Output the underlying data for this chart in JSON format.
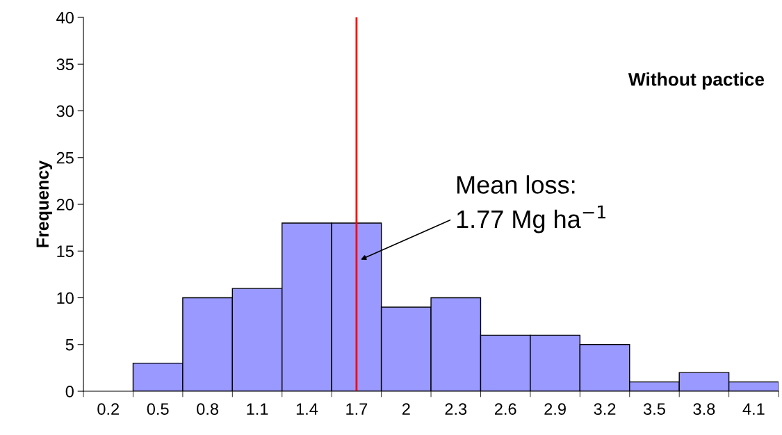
{
  "chart_data": {
    "type": "bar",
    "ylabel": "Frequency",
    "categories": [
      "0.2",
      "0.5",
      "0.8",
      "1.1",
      "1.4",
      "1.7",
      "2",
      "2.3",
      "2.6",
      "2.9",
      "3.2",
      "3.5",
      "3.8",
      "4.1"
    ],
    "values": [
      0,
      3,
      10,
      11,
      18,
      18,
      9,
      10,
      6,
      6,
      5,
      1,
      2,
      1
    ],
    "color": "#9999ff",
    "ylim": [
      0,
      40
    ],
    "yticks": [
      0,
      5,
      10,
      15,
      20,
      25,
      30,
      35,
      40
    ],
    "grid": false,
    "legend": false,
    "ref_lines": [
      {
        "axis": "x",
        "value": "1.7",
        "color": "#ff0000"
      }
    ],
    "annotations": [
      "Without pactice",
      "Mean loss:\n1.77 Mg ha$^{−1}$"
    ]
  }
}
